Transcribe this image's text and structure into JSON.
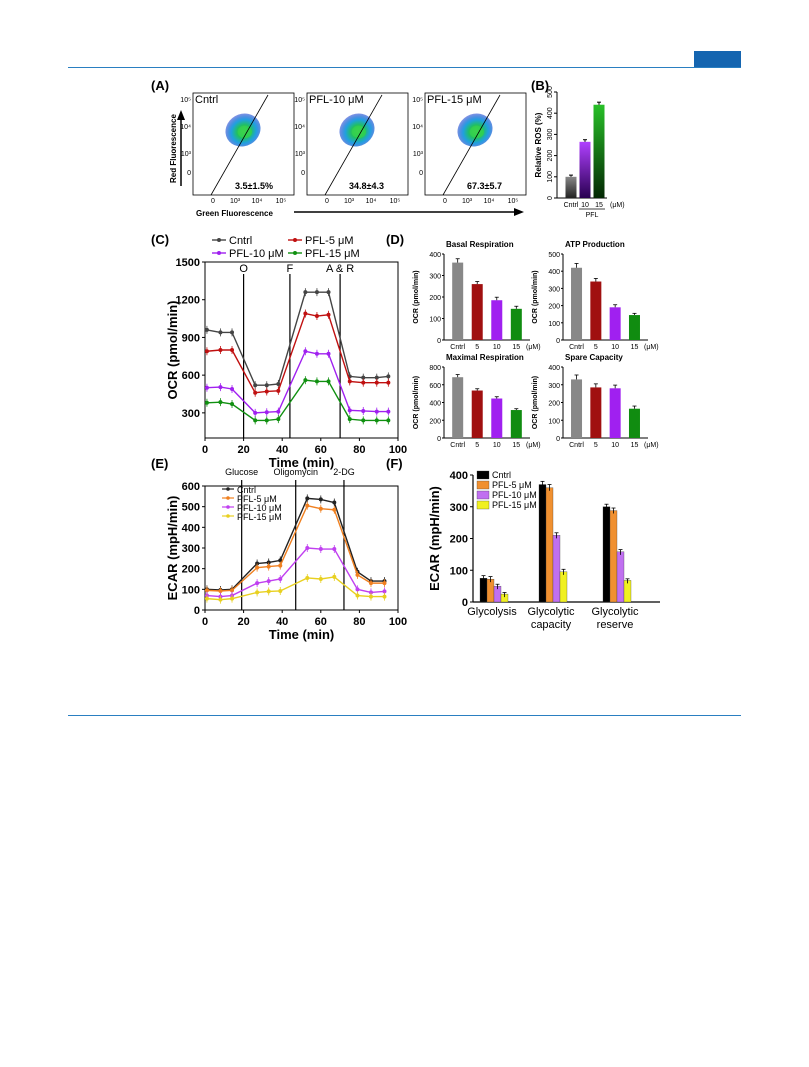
{
  "panels": {
    "A": {
      "label": "(A)",
      "ylabel": "Red Fluorescence",
      "xlabel": "Green Fluorescence",
      "yticks": [
        "10⁵",
        "10⁴",
        "10³",
        "0"
      ],
      "xticks": [
        "0",
        "10³",
        "10⁴",
        "10⁵"
      ],
      "plots": [
        {
          "name": "Cntrl",
          "value": "3.5±1.5%"
        },
        {
          "name": "PFL-10 μM",
          "value": "34.8±4.3"
        },
        {
          "name": "PFL-15 μM",
          "value": "67.3±5.7"
        }
      ]
    },
    "B": {
      "label": "(B)"
    },
    "C": {
      "label": "(C)"
    },
    "D": {
      "label": "(D)"
    },
    "E": {
      "label": "(E)"
    },
    "F": {
      "label": "(F)"
    }
  },
  "chart_data": [
    {
      "id": "B",
      "type": "bar",
      "ylabel": "Relative ROS (%)",
      "categories": [
        "Cntrl",
        "10",
        "15"
      ],
      "group_label": "PFL",
      "unit_label": "(μM)",
      "values": [
        100,
        265,
        440
      ],
      "errors": [
        8,
        10,
        12
      ],
      "colors": [
        "#555555",
        "#8a10e0",
        "#18a018"
      ],
      "ylim": [
        0,
        500
      ],
      "yticks": [
        0,
        100,
        200,
        300,
        400,
        500
      ]
    },
    {
      "id": "C",
      "type": "line",
      "xlabel": "Time (min)",
      "ylabel": "OCR (pmol/min)",
      "xlim": [
        0,
        100
      ],
      "ylim": [
        100,
        1500
      ],
      "xticks": [
        0,
        20,
        40,
        60,
        80,
        100
      ],
      "yticks": [
        300,
        600,
        900,
        1200,
        1500
      ],
      "injections": [
        {
          "x": 20,
          "label": "O"
        },
        {
          "x": 44,
          "label": "F"
        },
        {
          "x": 70,
          "label": "A & R"
        }
      ],
      "x": [
        1,
        8,
        14,
        26,
        32,
        38,
        52,
        58,
        64,
        75,
        82,
        89,
        95
      ],
      "series": [
        {
          "name": "Cntrl",
          "color": "#444444",
          "values": [
            960,
            940,
            940,
            520,
            520,
            530,
            1260,
            1260,
            1260,
            590,
            580,
            580,
            590
          ]
        },
        {
          "name": "PFL-5 μM",
          "color": "#c01010",
          "values": [
            790,
            800,
            800,
            460,
            470,
            475,
            1090,
            1070,
            1080,
            550,
            540,
            540,
            540
          ]
        },
        {
          "name": "PFL-10 μM",
          "color": "#a020f0",
          "values": [
            500,
            505,
            490,
            300,
            305,
            310,
            790,
            770,
            770,
            320,
            315,
            310,
            310
          ]
        },
        {
          "name": "PFL-15 μM",
          "color": "#109010",
          "values": [
            380,
            385,
            370,
            240,
            240,
            250,
            560,
            550,
            550,
            250,
            240,
            240,
            240
          ]
        }
      ]
    },
    {
      "id": "D-basal",
      "type": "bar",
      "title": "Basal Respiration",
      "ylabel": "OCR (pmol/min)",
      "categories": [
        "Cntrl",
        "5",
        "10",
        "15"
      ],
      "unit_label": "(μM)",
      "values": [
        360,
        260,
        185,
        145
      ],
      "errors": [
        18,
        12,
        14,
        12
      ],
      "ylim": [
        0,
        400
      ],
      "yticks": [
        0,
        100,
        200,
        300,
        400
      ]
    },
    {
      "id": "D-atp",
      "type": "bar",
      "title": "ATP Production",
      "ylabel": "OCR (pmol/min)",
      "categories": [
        "Cntrl",
        "5",
        "10",
        "15"
      ],
      "unit_label": "(μM)",
      "values": [
        420,
        340,
        190,
        145
      ],
      "errors": [
        25,
        18,
        15,
        10
      ],
      "ylim": [
        0,
        500
      ],
      "yticks": [
        0,
        100,
        200,
        300,
        400,
        500
      ]
    },
    {
      "id": "D-maximal",
      "type": "bar",
      "title": "Maximal Respiration",
      "ylabel": "OCR (pmol/min)",
      "categories": [
        "Cntrl",
        "5",
        "10",
        "15"
      ],
      "unit_label": "(μM)",
      "values": [
        685,
        535,
        445,
        315
      ],
      "errors": [
        30,
        20,
        20,
        15
      ],
      "ylim": [
        0,
        800
      ],
      "yticks": [
        0,
        200,
        400,
        600,
        800
      ]
    },
    {
      "id": "D-spare",
      "type": "bar",
      "title": "Spare Capacity",
      "ylabel": "OCR (pmol/min)",
      "categories": [
        "Cntrl",
        "5",
        "10",
        "15"
      ],
      "unit_label": "(μM)",
      "values": [
        330,
        285,
        280,
        165
      ],
      "errors": [
        25,
        20,
        18,
        15
      ],
      "ylim": [
        0,
        400
      ],
      "yticks": [
        0,
        100,
        200,
        300,
        400
      ]
    },
    {
      "id": "E",
      "type": "line",
      "xlabel": "Time (min)",
      "ylabel": "ECAR (mpH/min)",
      "xlim": [
        0,
        100
      ],
      "ylim": [
        0,
        600
      ],
      "xticks": [
        0,
        20,
        40,
        60,
        80,
        100
      ],
      "yticks": [
        0,
        100,
        200,
        300,
        400,
        500,
        600
      ],
      "injections": [
        {
          "x": 19,
          "label": "Glucose"
        },
        {
          "x": 47,
          "label": "Oligomycin"
        },
        {
          "x": 72,
          "label": "2-DG"
        }
      ],
      "x": [
        1,
        8,
        14,
        27,
        33,
        39,
        53,
        60,
        67,
        79,
        86,
        93
      ],
      "series": [
        {
          "name": "Cntrl",
          "color": "#222222",
          "values": [
            100,
            97,
            100,
            225,
            230,
            240,
            540,
            535,
            520,
            185,
            140,
            140
          ]
        },
        {
          "name": "PFL-5 μM",
          "color": "#f08020",
          "values": [
            95,
            92,
            95,
            205,
            210,
            215,
            505,
            490,
            485,
            170,
            130,
            130
          ]
        },
        {
          "name": "PFL-10 μM",
          "color": "#c040f0",
          "values": [
            70,
            65,
            70,
            130,
            140,
            150,
            300,
            295,
            295,
            100,
            85,
            90
          ]
        },
        {
          "name": "PFL-15 μM",
          "color": "#e8d020",
          "values": [
            55,
            50,
            55,
            85,
            90,
            92,
            155,
            150,
            160,
            70,
            65,
            65
          ]
        }
      ]
    },
    {
      "id": "F",
      "type": "bar",
      "ylabel": "ECAR (mpH/min)",
      "categories": [
        "Glycolysis",
        "Glycolytic\ncapacity",
        "Glycolytic\nreserve"
      ],
      "ylim": [
        0,
        400
      ],
      "yticks": [
        0,
        100,
        200,
        300,
        400
      ],
      "series": [
        {
          "name": "Cntrl",
          "color": "#000000",
          "values": [
            75,
            370,
            300
          ],
          "errors": [
            8,
            10,
            8
          ]
        },
        {
          "name": "PFL-5 μM",
          "color": "#f09030",
          "values": [
            72,
            360,
            288
          ],
          "errors": [
            8,
            10,
            8
          ]
        },
        {
          "name": "PFL-10 μM",
          "color": "#c070f0",
          "values": [
            50,
            210,
            158
          ],
          "errors": [
            6,
            8,
            7
          ]
        },
        {
          "name": "PFL-15 μM",
          "color": "#f0f020",
          "values": [
            25,
            95,
            68
          ],
          "errors": [
            5,
            8,
            5
          ]
        }
      ]
    }
  ]
}
